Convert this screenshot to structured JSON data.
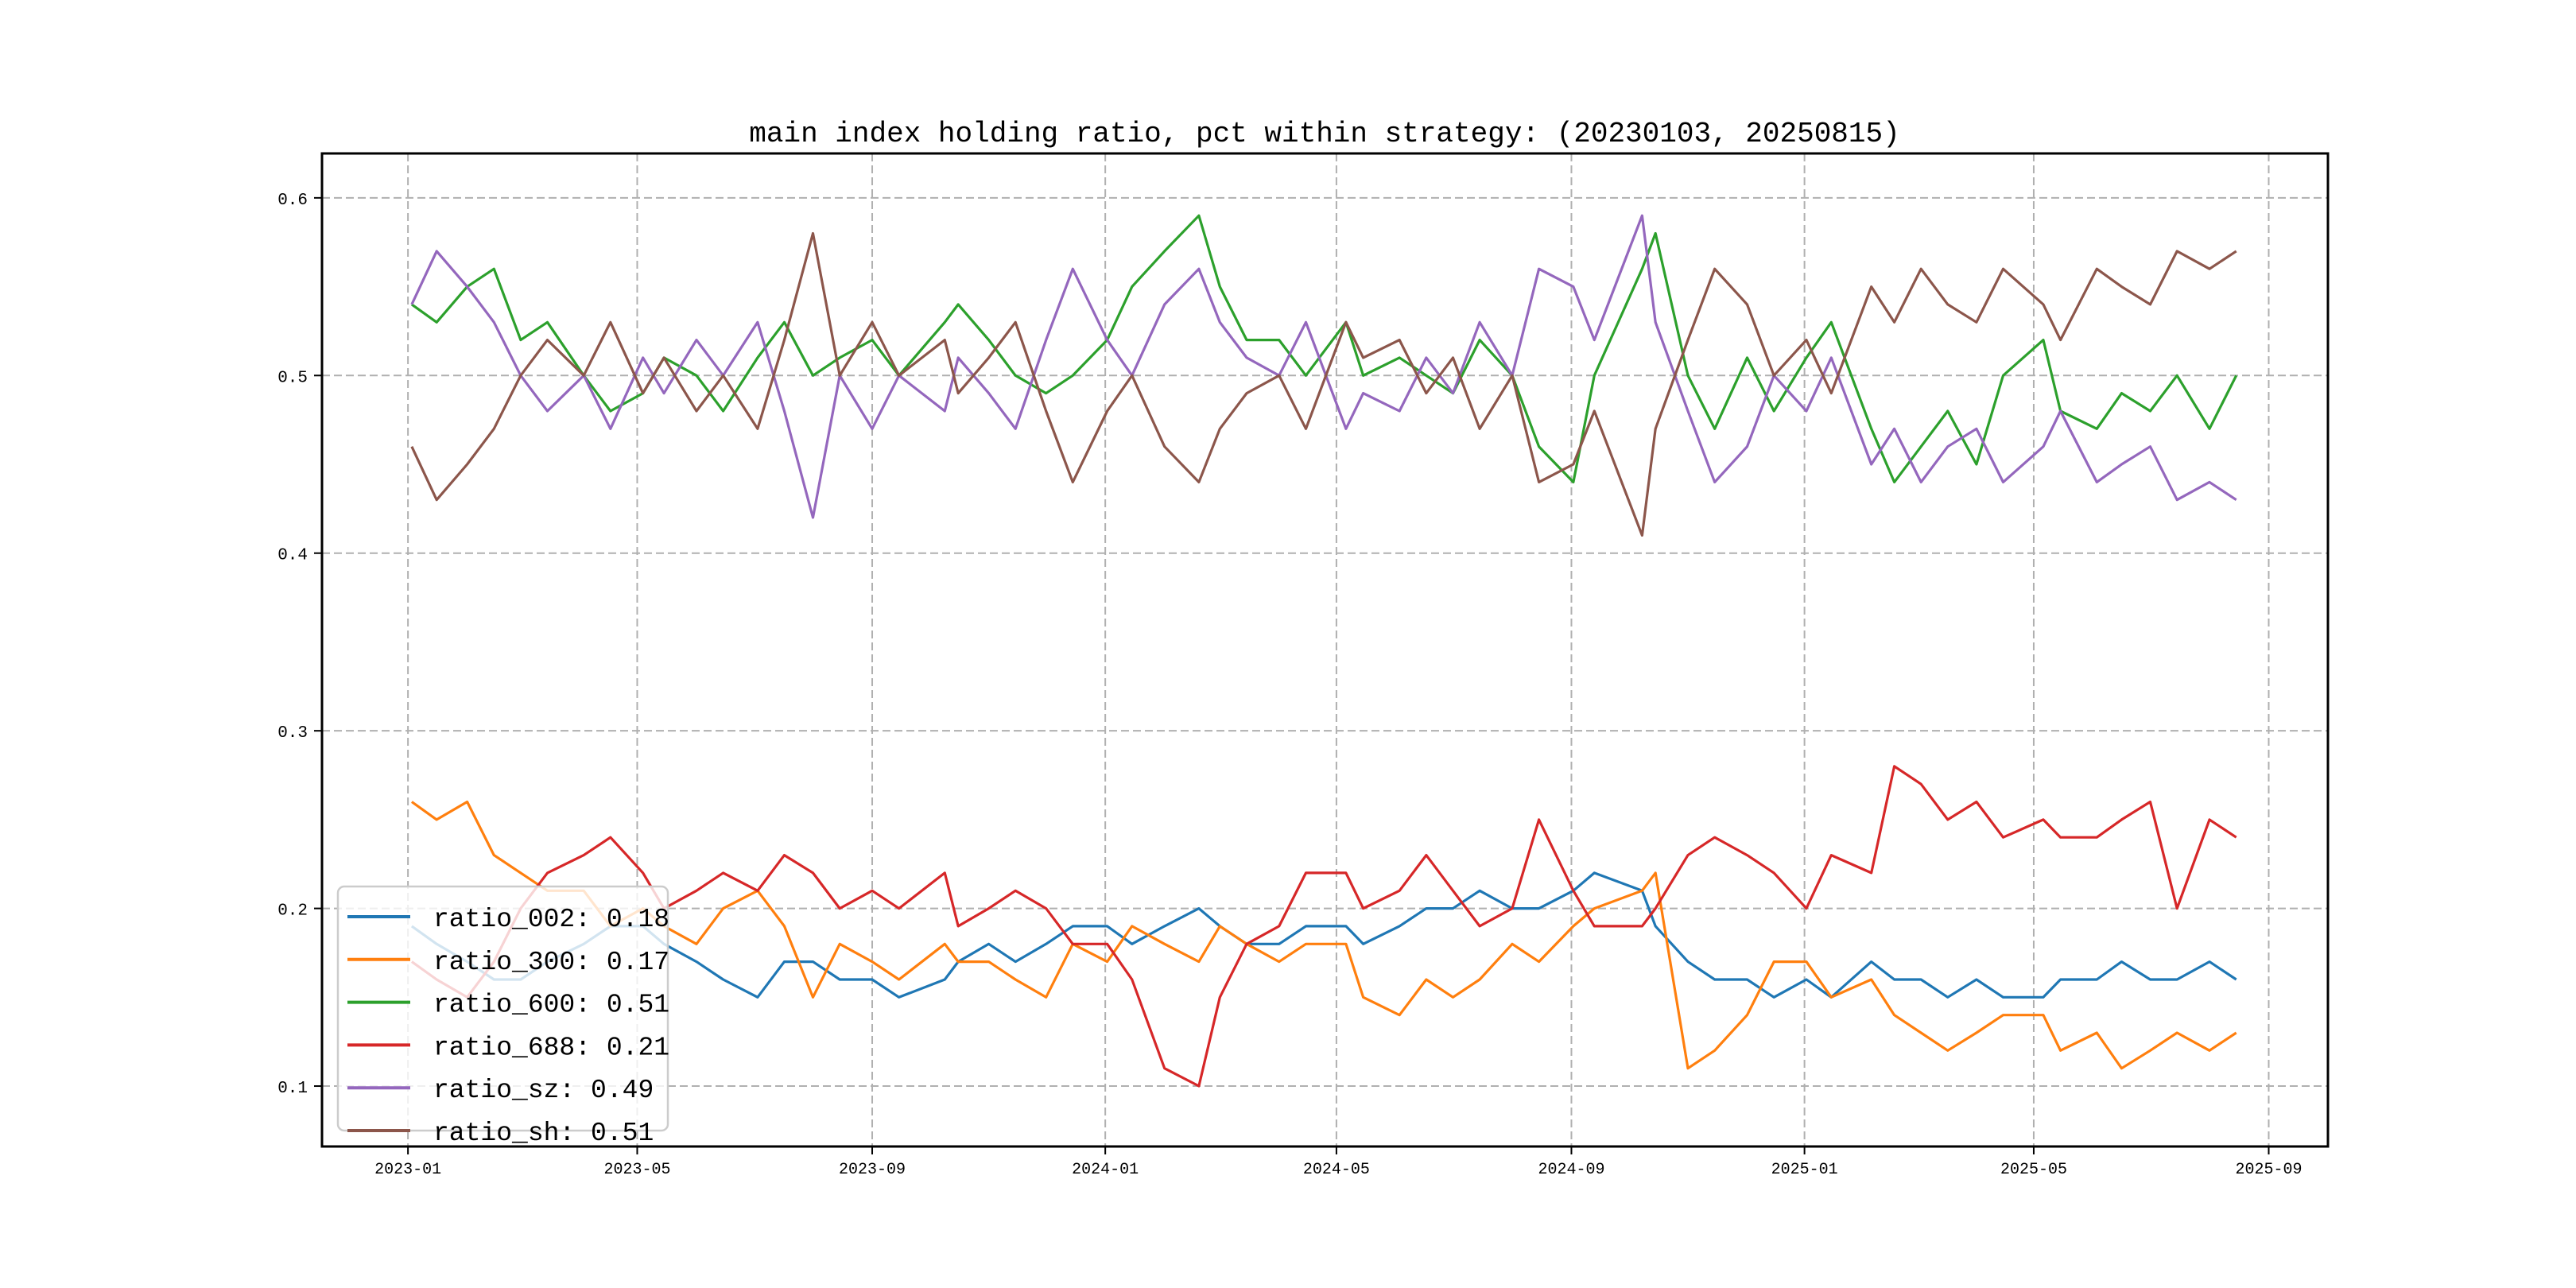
{
  "chart_data": {
    "type": "line",
    "title": "main index holding ratio, pct within strategy: (20230103, 20250815)",
    "xlabel": "",
    "ylabel": "",
    "ylim": [
      0.066,
      0.625
    ],
    "xlim": [
      "2022-11-17",
      "2025-10-02"
    ],
    "grid": true,
    "legend_placement": "lower-left",
    "yticks": [
      "0.1",
      "0.2",
      "0.3",
      "0.4",
      "0.5",
      "0.6"
    ],
    "ytick_values": [
      0.1,
      0.2,
      0.3,
      0.4,
      0.5,
      0.6
    ],
    "xticks": [
      "2023-01",
      "2023-05",
      "2023-09",
      "2024-01",
      "2024-05",
      "2024-09",
      "2025-01",
      "2025-05",
      "2025-09"
    ],
    "x": [
      "2023-01-03",
      "2023-01-16",
      "2023-02-01",
      "2023-02-15",
      "2023-03-01",
      "2023-03-15",
      "2023-04-03",
      "2023-04-17",
      "2023-05-04",
      "2023-05-15",
      "2023-06-01",
      "2023-06-15",
      "2023-07-03",
      "2023-07-17",
      "2023-08-01",
      "2023-08-15",
      "2023-09-01",
      "2023-09-15",
      "2023-10-09",
      "2023-10-16",
      "2023-11-01",
      "2023-11-15",
      "2023-12-01",
      "2023-12-15",
      "2024-01-02",
      "2024-01-15",
      "2024-02-01",
      "2024-02-19",
      "2024-03-01",
      "2024-03-15",
      "2024-04-01",
      "2024-04-15",
      "2024-05-06",
      "2024-05-15",
      "2024-06-03",
      "2024-06-17",
      "2024-07-01",
      "2024-07-15",
      "2024-08-01",
      "2024-08-15",
      "2024-09-02",
      "2024-09-13",
      "2024-10-08",
      "2024-10-15",
      "2024-11-01",
      "2024-11-15",
      "2024-12-02",
      "2024-12-16",
      "2025-01-02",
      "2025-01-15",
      "2025-02-05",
      "2025-02-17",
      "2025-03-03",
      "2025-03-17",
      "2025-04-01",
      "2025-04-15",
      "2025-05-06",
      "2025-05-15",
      "2025-06-03",
      "2025-06-16",
      "2025-07-01",
      "2025-07-15",
      "2025-08-01",
      "2025-08-15"
    ],
    "series": [
      {
        "name": "ratio_002",
        "legend": "ratio_002: 0.18",
        "color": "#1f77b4",
        "values": [
          0.19,
          0.18,
          0.17,
          0.16,
          0.16,
          0.17,
          0.18,
          0.19,
          0.19,
          0.18,
          0.17,
          0.16,
          0.15,
          0.17,
          0.17,
          0.16,
          0.16,
          0.15,
          0.16,
          0.17,
          0.18,
          0.17,
          0.18,
          0.19,
          0.19,
          0.18,
          0.19,
          0.2,
          0.19,
          0.18,
          0.18,
          0.19,
          0.19,
          0.18,
          0.19,
          0.2,
          0.2,
          0.21,
          0.2,
          0.2,
          0.21,
          0.22,
          0.21,
          0.19,
          0.17,
          0.16,
          0.16,
          0.15,
          0.16,
          0.15,
          0.17,
          0.16,
          0.16,
          0.15,
          0.16,
          0.15,
          0.15,
          0.16,
          0.16,
          0.17,
          0.16,
          0.16,
          0.17,
          0.16
        ]
      },
      {
        "name": "ratio_300",
        "legend": "ratio_300: 0.17",
        "color": "#ff7f0e",
        "values": [
          0.26,
          0.25,
          0.26,
          0.23,
          0.22,
          0.21,
          0.21,
          0.19,
          0.2,
          0.19,
          0.18,
          0.2,
          0.21,
          0.19,
          0.15,
          0.18,
          0.17,
          0.16,
          0.18,
          0.17,
          0.17,
          0.16,
          0.15,
          0.18,
          0.17,
          0.19,
          0.18,
          0.17,
          0.19,
          0.18,
          0.17,
          0.18,
          0.18,
          0.15,
          0.14,
          0.16,
          0.15,
          0.16,
          0.18,
          0.17,
          0.19,
          0.2,
          0.21,
          0.22,
          0.11,
          0.12,
          0.14,
          0.17,
          0.17,
          0.15,
          0.16,
          0.14,
          0.13,
          0.12,
          0.13,
          0.14,
          0.14,
          0.12,
          0.13,
          0.11,
          0.12,
          0.13,
          0.12,
          0.13
        ]
      },
      {
        "name": "ratio_600",
        "legend": "ratio_600: 0.51",
        "color": "#2ca02c",
        "values": [
          0.54,
          0.53,
          0.55,
          0.56,
          0.52,
          0.53,
          0.5,
          0.48,
          0.49,
          0.51,
          0.5,
          0.48,
          0.51,
          0.53,
          0.5,
          0.51,
          0.52,
          0.5,
          0.53,
          0.54,
          0.52,
          0.5,
          0.49,
          0.5,
          0.52,
          0.55,
          0.57,
          0.59,
          0.55,
          0.52,
          0.52,
          0.5,
          0.53,
          0.5,
          0.51,
          0.5,
          0.49,
          0.52,
          0.5,
          0.46,
          0.44,
          0.5,
          0.56,
          0.58,
          0.5,
          0.47,
          0.51,
          0.48,
          0.51,
          0.53,
          0.47,
          0.44,
          0.46,
          0.48,
          0.45,
          0.5,
          0.52,
          0.48,
          0.47,
          0.49,
          0.48,
          0.5,
          0.47,
          0.5
        ]
      },
      {
        "name": "ratio_688",
        "legend": "ratio_688: 0.21",
        "color": "#d62728",
        "values": [
          0.17,
          0.16,
          0.15,
          0.17,
          0.2,
          0.22,
          0.23,
          0.24,
          0.22,
          0.2,
          0.21,
          0.22,
          0.21,
          0.23,
          0.22,
          0.2,
          0.21,
          0.2,
          0.22,
          0.19,
          0.2,
          0.21,
          0.2,
          0.18,
          0.18,
          0.16,
          0.11,
          0.1,
          0.15,
          0.18,
          0.19,
          0.22,
          0.22,
          0.2,
          0.21,
          0.23,
          0.21,
          0.19,
          0.2,
          0.25,
          0.21,
          0.19,
          0.19,
          0.2,
          0.23,
          0.24,
          0.23,
          0.22,
          0.2,
          0.23,
          0.22,
          0.28,
          0.27,
          0.25,
          0.26,
          0.24,
          0.25,
          0.24,
          0.24,
          0.25,
          0.26,
          0.2,
          0.25,
          0.24
        ]
      },
      {
        "name": "ratio_sz",
        "legend": "ratio_sz: 0.49",
        "color": "#9467bd",
        "values": [
          0.54,
          0.57,
          0.55,
          0.53,
          0.5,
          0.48,
          0.5,
          0.47,
          0.51,
          0.49,
          0.52,
          0.5,
          0.53,
          0.48,
          0.42,
          0.5,
          0.47,
          0.5,
          0.48,
          0.51,
          0.49,
          0.47,
          0.52,
          0.56,
          0.52,
          0.5,
          0.54,
          0.56,
          0.53,
          0.51,
          0.5,
          0.53,
          0.47,
          0.49,
          0.48,
          0.51,
          0.49,
          0.53,
          0.5,
          0.56,
          0.55,
          0.52,
          0.59,
          0.53,
          0.48,
          0.44,
          0.46,
          0.5,
          0.48,
          0.51,
          0.45,
          0.47,
          0.44,
          0.46,
          0.47,
          0.44,
          0.46,
          0.48,
          0.44,
          0.45,
          0.46,
          0.43,
          0.44,
          0.43
        ]
      },
      {
        "name": "ratio_sh",
        "legend": "ratio_sh: 0.51",
        "color": "#8c564b",
        "values": [
          0.46,
          0.43,
          0.45,
          0.47,
          0.5,
          0.52,
          0.5,
          0.53,
          0.49,
          0.51,
          0.48,
          0.5,
          0.47,
          0.52,
          0.58,
          0.5,
          0.53,
          0.5,
          0.52,
          0.49,
          0.51,
          0.53,
          0.48,
          0.44,
          0.48,
          0.5,
          0.46,
          0.44,
          0.47,
          0.49,
          0.5,
          0.47,
          0.53,
          0.51,
          0.52,
          0.49,
          0.51,
          0.47,
          0.5,
          0.44,
          0.45,
          0.48,
          0.41,
          0.47,
          0.52,
          0.56,
          0.54,
          0.5,
          0.52,
          0.49,
          0.55,
          0.53,
          0.56,
          0.54,
          0.53,
          0.56,
          0.54,
          0.52,
          0.56,
          0.55,
          0.54,
          0.57,
          0.56,
          0.57
        ]
      }
    ]
  }
}
